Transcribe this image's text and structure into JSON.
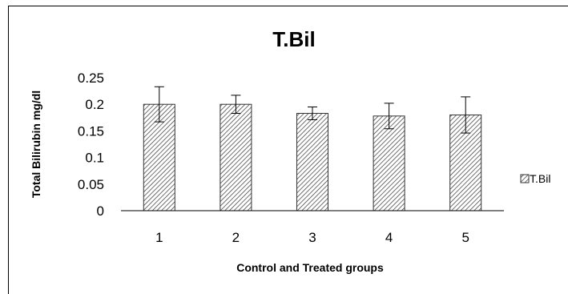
{
  "chart_data": {
    "type": "bar",
    "title": "T.Bil",
    "xlabel": "Control and Treated groups",
    "ylabel": "Total Bilirubin  mg/dl",
    "categories": [
      "1",
      "2",
      "3",
      "4",
      "5"
    ],
    "series": [
      {
        "name": "T.Bil",
        "values": [
          0.2,
          0.2,
          0.183,
          0.178,
          0.18
        ],
        "error": [
          0.033,
          0.017,
          0.012,
          0.024,
          0.034
        ]
      }
    ],
    "ylim": [
      0,
      0.25
    ],
    "yticks": [
      "0",
      "0.05",
      "0.1",
      "0.15",
      "0.2",
      "0.25"
    ],
    "grid": false,
    "legend_position": "right",
    "bar_pattern": "diagonal-hatch",
    "colors": {
      "bar_fill": "#ffffff",
      "hatch": "#333333",
      "axis": "#000000"
    }
  }
}
